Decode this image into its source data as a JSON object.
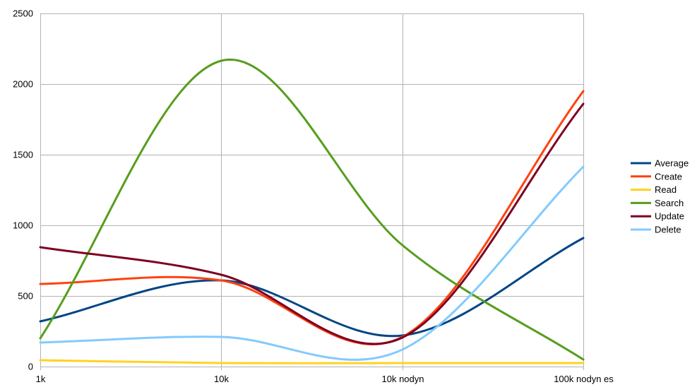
{
  "chart_data": {
    "type": "line",
    "title": "",
    "xlabel": "",
    "ylabel": "",
    "categories": [
      "1k",
      "10k",
      "10k nodyn",
      "100k nodyn es"
    ],
    "ylim": [
      0,
      2500
    ],
    "yticks": [
      0,
      500,
      1000,
      1500,
      2000,
      2500
    ],
    "grid": true,
    "legend_position": "right",
    "smooth": true,
    "series": [
      {
        "name": "Average",
        "color": "#004586",
        "values": [
          320,
          610,
          220,
          910
        ]
      },
      {
        "name": "Create",
        "color": "#ff420e",
        "values": [
          585,
          610,
          210,
          1950
        ]
      },
      {
        "name": "Read",
        "color": "#ffd320",
        "values": [
          45,
          25,
          25,
          25
        ]
      },
      {
        "name": "Search",
        "color": "#579d1c",
        "values": [
          200,
          2165,
          860,
          50
        ]
      },
      {
        "name": "Update",
        "color": "#7e0021",
        "values": [
          845,
          650,
          205,
          1860
        ]
      },
      {
        "name": "Delete",
        "color": "#83caff",
        "values": [
          170,
          210,
          120,
          1415
        ]
      }
    ]
  }
}
